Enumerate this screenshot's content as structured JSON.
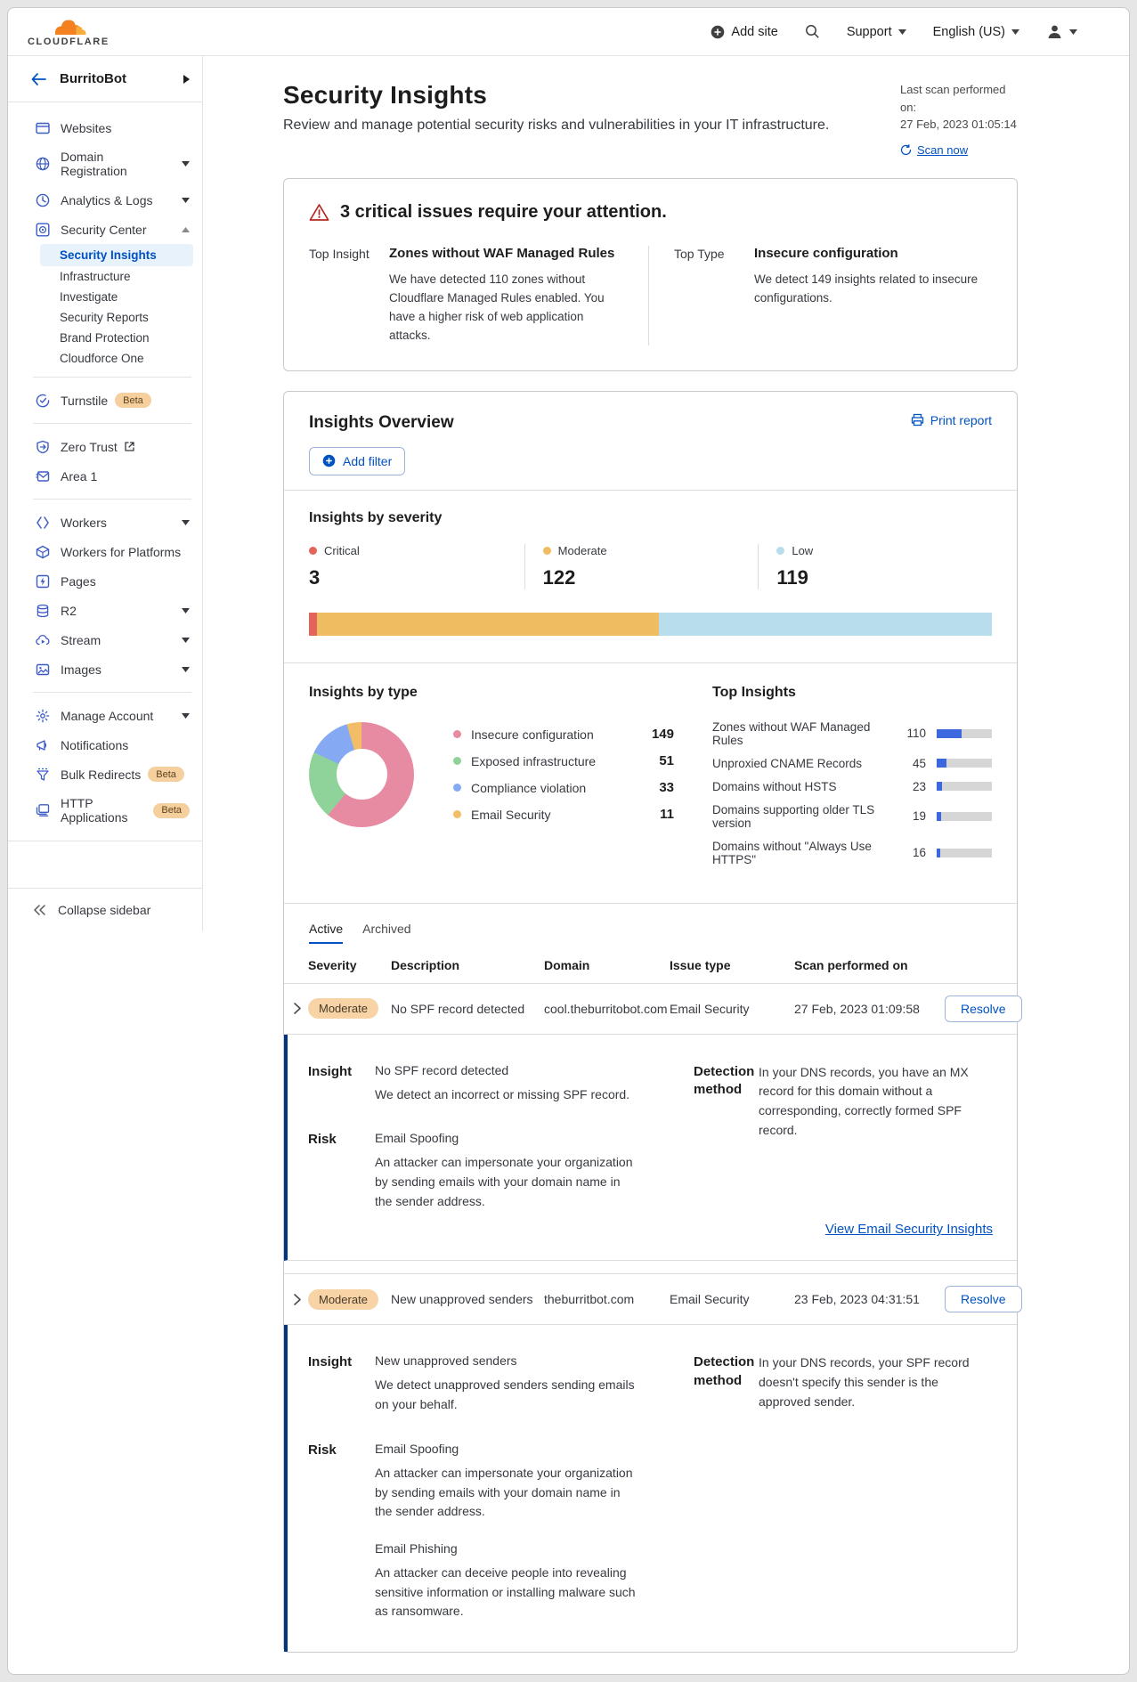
{
  "colors": {
    "accent_blue": "#0051c3",
    "bar_fill_blue": "#3b68de",
    "expanded_row_accent": "#003681",
    "brand_orange": "#f48120"
  },
  "topbar": {
    "logo_text": "CLOUDFLARE",
    "add_site": "Add site",
    "support": "Support",
    "language": "English (US)"
  },
  "sidebar": {
    "account": "BurritoBot",
    "collapse": "Collapse sidebar",
    "items": [
      {
        "label": "Websites"
      },
      {
        "label": "Domain Registration"
      },
      {
        "label": "Analytics & Logs"
      },
      {
        "label": "Security Center"
      },
      {
        "label": "Turnstile",
        "badge": "Beta"
      },
      {
        "label": "Zero Trust"
      },
      {
        "label": "Area 1"
      },
      {
        "label": "Workers"
      },
      {
        "label": "Workers for Platforms"
      },
      {
        "label": "Pages"
      },
      {
        "label": "R2"
      },
      {
        "label": "Stream"
      },
      {
        "label": "Images"
      },
      {
        "label": "Manage Account"
      },
      {
        "label": "Notifications"
      },
      {
        "label": "Bulk Redirects",
        "badge": "Beta"
      },
      {
        "label": "HTTP Applications",
        "badge": "Beta"
      }
    ],
    "security_sub": [
      {
        "label": "Security Insights",
        "active": true
      },
      {
        "label": "Infrastructure"
      },
      {
        "label": "Investigate"
      },
      {
        "label": "Security Reports"
      },
      {
        "label": "Brand Protection"
      },
      {
        "label": "Cloudforce One"
      }
    ]
  },
  "page_header": {
    "title": "Security Insights",
    "subtitle": "Review and manage potential security risks and vulnerabilities in your IT infrastructure.",
    "last_scan_label": "Last scan performed on:",
    "last_scan_time": "27 Feb, 2023 01:05:14",
    "scan_now": "Scan now"
  },
  "critical_banner": {
    "title": "3 critical issues require your attention.",
    "top_insight_label": "Top Insight",
    "top_insight_title": "Zones without WAF Managed Rules",
    "top_insight_desc": "We have detected 110 zones without Cloudflare Managed Rules enabled. You have a higher risk of web application attacks.",
    "top_type_label": "Top Type",
    "top_type_title": "Insecure configuration",
    "top_type_desc": "We detect 149 insights related to insecure configurations."
  },
  "overview": {
    "title": "Insights Overview",
    "print_report": "Print report",
    "add_filter": "Add filter",
    "severity": {
      "title": "Insights by severity",
      "items": [
        {
          "label": "Critical",
          "value": 3,
          "color": "#e4635a"
        },
        {
          "label": "Moderate",
          "value": 122,
          "color": "#f0bc62"
        },
        {
          "label": "Low",
          "value": 119,
          "color": "#b8dded"
        }
      ]
    },
    "types": {
      "title": "Insights by type",
      "items": [
        {
          "label": "Insecure configuration",
          "value": 149,
          "color": "#e78ba3"
        },
        {
          "label": "Exposed infrastructure",
          "value": 51,
          "color": "#8fd39b"
        },
        {
          "label": "Compliance violation",
          "value": 33,
          "color": "#85a9f2"
        },
        {
          "label": "Email Security",
          "value": 11,
          "color": "#f2bd66"
        }
      ]
    },
    "top_insights": {
      "title": "Top Insights",
      "items": [
        {
          "label": "Zones without WAF Managed Rules",
          "value": 110
        },
        {
          "label": "Unproxied CNAME Records",
          "value": 45
        },
        {
          "label": "Domains without HSTS",
          "value": 23
        },
        {
          "label": "Domains supporting older TLS version",
          "value": 19
        },
        {
          "label": "Domains without \"Always Use HTTPS\"",
          "value": 16
        }
      ]
    }
  },
  "table": {
    "tabs": {
      "active": "Active",
      "archived": "Archived"
    },
    "columns": {
      "severity": "Severity",
      "description": "Description",
      "domain": "Domain",
      "issue_type": "Issue type",
      "scanned": "Scan performed on"
    },
    "labels": {
      "insight": "Insight",
      "risk": "Risk",
      "detection": "Detection method"
    },
    "resolve": "Resolve",
    "rows": [
      {
        "severity": "Moderate",
        "description": "No SPF record detected",
        "domain": "cool.theburritobot.com",
        "issue_type": "Email Security",
        "scanned": "27 Feb, 2023 01:09:58",
        "insight_title": "No SPF record detected",
        "insight_desc": "We detect an incorrect or missing SPF record.",
        "risks": [
          {
            "title": "Email Spoofing",
            "desc": "An attacker can impersonate your organization by sending emails with your domain name in the sender address."
          }
        ],
        "detection": "In your DNS records, you have an MX record for this domain without a corresponding, correctly formed SPF record.",
        "link": "View Email Security Insights"
      },
      {
        "severity": "Moderate",
        "description": "New unapproved senders",
        "domain": "theburritbot.com",
        "issue_type": "Email Security",
        "scanned": "23 Feb, 2023 04:31:51",
        "insight_title": "New unapproved senders",
        "insight_desc": "We detect unapproved senders sending emails on your behalf.",
        "risks": [
          {
            "title": "Email Spoofing",
            "desc": "An attacker can impersonate your organization by sending emails with your domain name in the sender address."
          },
          {
            "title": "Email Phishing",
            "desc": "An attacker can deceive people into revealing sensitive information or installing malware such as ransomware."
          }
        ],
        "detection": "In your DNS records, your SPF record doesn't specify this sender is the approved sender."
      }
    ]
  }
}
